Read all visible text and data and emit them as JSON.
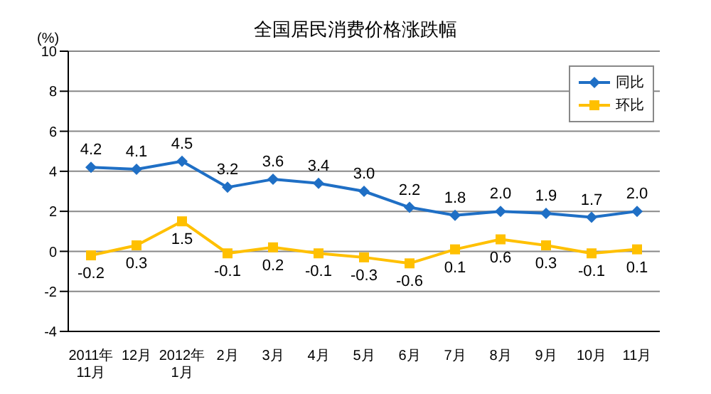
{
  "chart_data": {
    "type": "line",
    "title": "全国居民消费价格涨跌幅",
    "ylabel": "(%)",
    "categories": [
      "2011年\n11月",
      "12月",
      "2012年\n1月",
      "2月",
      "3月",
      "4月",
      "5月",
      "6月",
      "7月",
      "8月",
      "9月",
      "10月",
      "11月"
    ],
    "series": [
      {
        "name": "同比",
        "color": "#1f6fc5",
        "marker": "diamond",
        "values": [
          4.2,
          4.1,
          4.5,
          3.2,
          3.6,
          3.4,
          3.0,
          2.2,
          1.8,
          2.0,
          1.9,
          1.7,
          2.0
        ],
        "value_labels": [
          "4.2",
          "4.1",
          "4.5",
          "3.2",
          "3.6",
          "3.4",
          "3.0",
          "2.2",
          "1.8",
          "2.0",
          "1.9",
          "1.7",
          "2.0"
        ]
      },
      {
        "name": "环比",
        "color": "#ffc000",
        "marker": "square",
        "values": [
          -0.2,
          0.3,
          1.5,
          -0.1,
          0.2,
          -0.1,
          -0.3,
          -0.6,
          0.1,
          0.6,
          0.3,
          -0.1,
          0.1
        ],
        "value_labels": [
          "-0.2",
          "0.3",
          "1.5",
          "-0.1",
          "0.2",
          "-0.1",
          "-0.3",
          "-0.6",
          "0.1",
          "0.6",
          "0.3",
          "-0.1",
          "0.1"
        ]
      }
    ],
    "ylim": [
      -4,
      10
    ],
    "yticks": [
      -4,
      -2,
      0,
      2,
      4,
      6,
      8,
      10
    ],
    "grid": "y",
    "legend": "top right"
  }
}
